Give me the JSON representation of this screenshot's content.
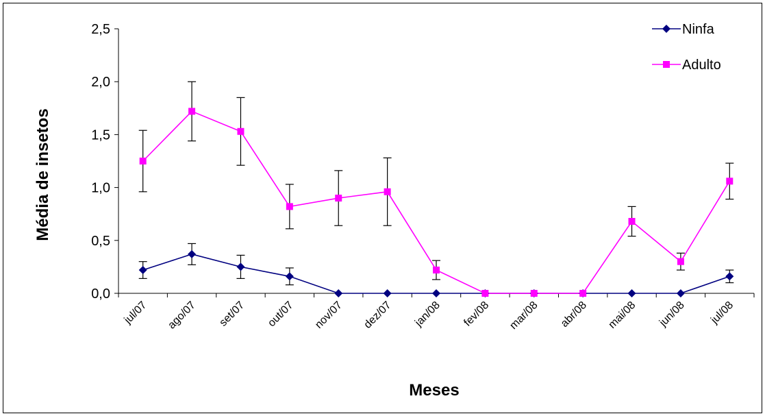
{
  "chart_data": {
    "type": "line",
    "title": "",
    "xlabel": "Meses",
    "ylabel": "Média de insetos",
    "ylim": [
      0,
      2.5
    ],
    "yticks": [
      "0,0",
      "0,5",
      "1,0",
      "1,5",
      "2,0",
      "2,5"
    ],
    "ytick_values": [
      0,
      0.5,
      1.0,
      1.5,
      2.0,
      2.5
    ],
    "categories": [
      "jul/07",
      "ago/07",
      "set/07",
      "out/07",
      "nov/07",
      "dez/07",
      "jan/08",
      "fev/08",
      "mar/08",
      "abr/08",
      "mai/08",
      "jun/08",
      "jul/08"
    ],
    "legend_position": "top-right",
    "grid": false,
    "series": [
      {
        "name": "Ninfa",
        "color": "#000080",
        "marker": "diamond",
        "values": [
          0.22,
          0.37,
          0.25,
          0.16,
          0,
          0,
          0,
          0,
          0,
          0,
          0,
          0,
          0.16
        ],
        "error": [
          0.08,
          0.1,
          0.11,
          0.08,
          null,
          null,
          null,
          null,
          null,
          null,
          null,
          null,
          0.06
        ]
      },
      {
        "name": "Adulto",
        "color": "#ff00ff",
        "marker": "square",
        "values": [
          1.25,
          1.72,
          1.53,
          0.82,
          0.9,
          0.96,
          0.22,
          0,
          0,
          0,
          0.68,
          0.3,
          1.06
        ],
        "error": [
          0.29,
          0.28,
          0.32,
          0.21,
          0.26,
          0.32,
          0.09,
          null,
          null,
          null,
          0.14,
          0.08,
          0.17
        ]
      }
    ]
  }
}
